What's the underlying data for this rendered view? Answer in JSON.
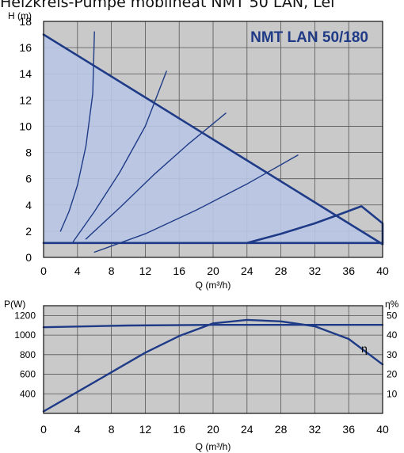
{
  "page_title": "Heizkreis-Pumpe mobilheat NMT 50 LAN, Lei",
  "colors": {
    "plot_bg": "#c9c9c9",
    "curve": "#1f3b87",
    "fill": "#b9c7e4",
    "grid": "#555555",
    "title": "#1f3b87"
  },
  "chart_data": [
    {
      "type": "line",
      "title": "NMT LAN 50/180",
      "xlabel": "Q (m³/h)",
      "ylabel": "H (m)",
      "xlim": [
        0,
        40
      ],
      "ylim": [
        0,
        18
      ],
      "x_ticks": [
        "0",
        "4",
        "8",
        "12",
        "16",
        "20",
        "24",
        "28",
        "32",
        "36",
        "40"
      ],
      "y_ticks": [
        "0",
        "2",
        "4",
        "6",
        "8",
        "10",
        "12",
        "14",
        "16",
        "18"
      ],
      "grid": true,
      "series": [
        {
          "points": [
            [
              0,
              17
            ],
            [
              6,
              14.6
            ],
            [
              12,
              12.2
            ],
            [
              18,
              9.8
            ],
            [
              24,
              7.4
            ],
            [
              30,
              5
            ],
            [
              36,
              2.6
            ],
            [
              40,
              1
            ]
          ]
        },
        {
          "points": [
            [
              24,
              1.1
            ],
            [
              28,
              1.8
            ],
            [
              32,
              2.6
            ],
            [
              35,
              3.3
            ],
            [
              37.5,
              3.9
            ],
            [
              40,
              2.6
            ],
            [
              40,
              1.1
            ]
          ]
        },
        {
          "points": [
            [
              0,
              1.1
            ],
            [
              40,
              1.1
            ]
          ]
        },
        {
          "points": [
            [
              2,
              2
            ],
            [
              3,
              3.5
            ],
            [
              4,
              5.5
            ],
            [
              5,
              8.5
            ],
            [
              5.8,
              12.5
            ],
            [
              6,
              17.2
            ]
          ]
        },
        {
          "points": [
            [
              3.5,
              1.2
            ],
            [
              6,
              3.5
            ],
            [
              9,
              6.5
            ],
            [
              12,
              10
            ],
            [
              14.5,
              14.2
            ]
          ]
        },
        {
          "points": [
            [
              5,
              1.4
            ],
            [
              9,
              3.8
            ],
            [
              13,
              6.3
            ],
            [
              17,
              8.6
            ],
            [
              21.5,
              11
            ]
          ]
        },
        {
          "points": [
            [
              6,
              0.4
            ],
            [
              12,
              1.8
            ],
            [
              18,
              3.6
            ],
            [
              24,
              5.6
            ],
            [
              30,
              7.8
            ]
          ]
        }
      ]
    },
    {
      "type": "line",
      "title": "",
      "xlabel": "Q (m³/h)",
      "ylabel": "P(W)",
      "y2label": "η%",
      "xlim": [
        0,
        40
      ],
      "ylim": [
        200,
        1300
      ],
      "y2lim": [
        0,
        55
      ],
      "x_ticks": [
        "0",
        "4",
        "8",
        "12",
        "16",
        "20",
        "24",
        "28",
        "32",
        "36",
        "40"
      ],
      "y_ticks": [
        "400",
        "600",
        "800",
        "1000",
        "1200"
      ],
      "y2_ticks": [
        "10",
        "20",
        "30",
        "40",
        "50"
      ],
      "grid": true,
      "annotation": "η",
      "series": [
        {
          "axis": "left",
          "points": [
            [
              0,
              1080
            ],
            [
              10,
              1098
            ],
            [
              20,
              1104
            ],
            [
              30,
              1104
            ],
            [
              40,
              1104
            ]
          ]
        },
        {
          "axis": "left",
          "points": [
            [
              0,
              220
            ],
            [
              4,
              420
            ],
            [
              8,
              620
            ],
            [
              12,
              820
            ],
            [
              16,
              990
            ],
            [
              20,
              1120
            ],
            [
              24,
              1155
            ],
            [
              28,
              1140
            ],
            [
              32,
              1090
            ],
            [
              36,
              960
            ],
            [
              40,
              700
            ]
          ]
        }
      ]
    }
  ]
}
